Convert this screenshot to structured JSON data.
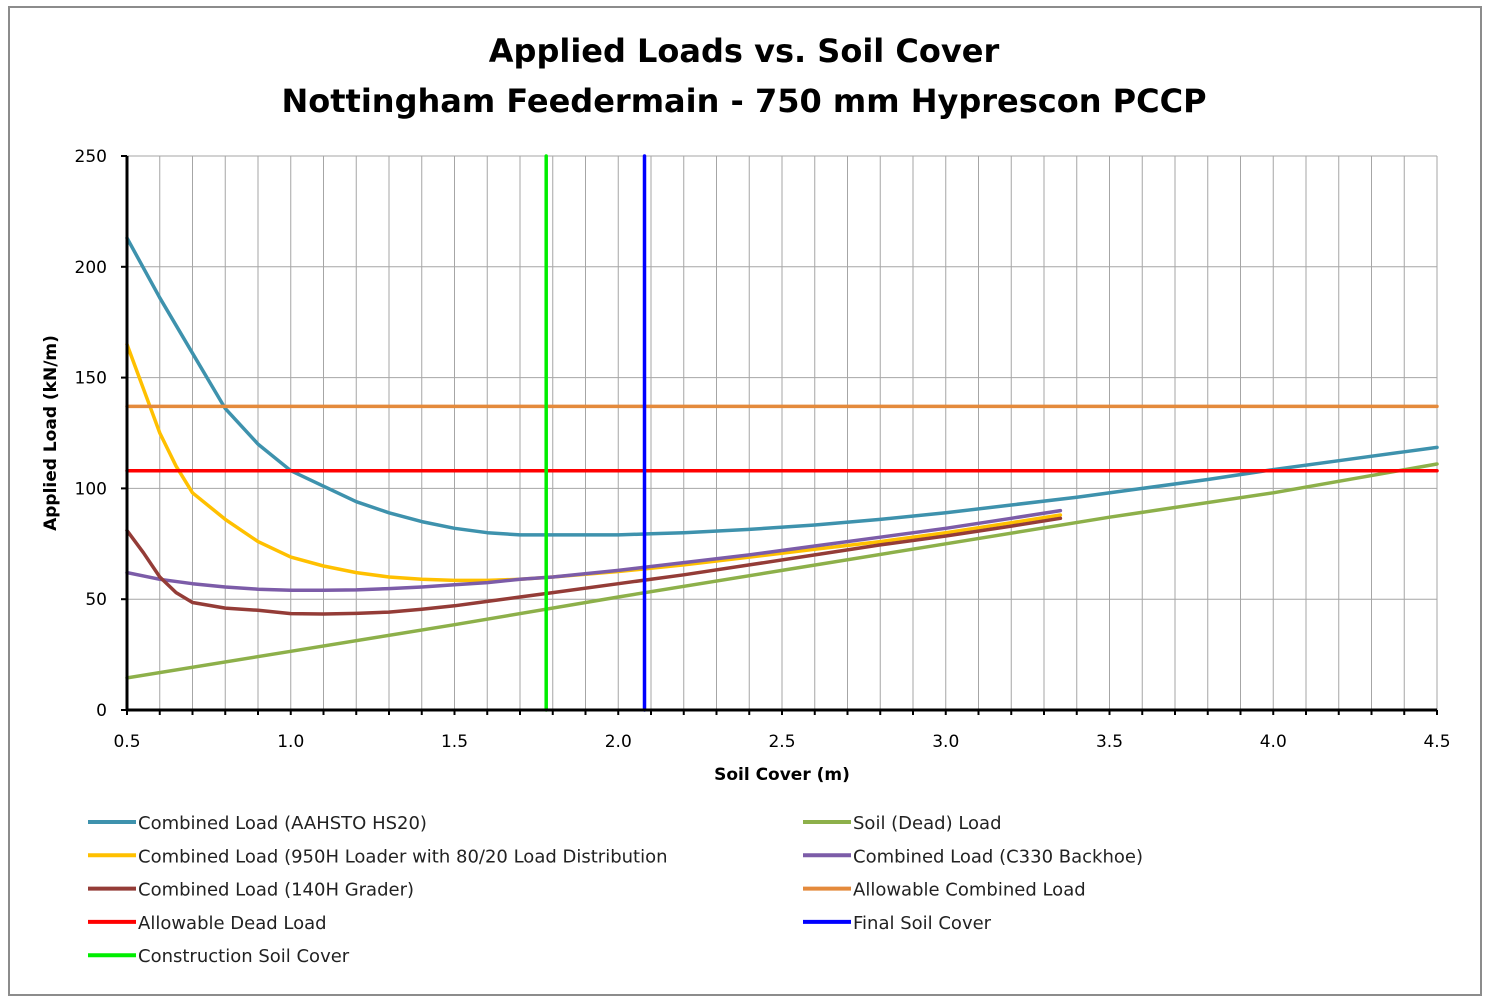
{
  "chart_data": {
    "type": "line",
    "title": "Applied Loads vs. Soil Cover",
    "subtitle": "Nottingham Feedermain - 750 mm Hyprescon PCCP",
    "xlabel": "Soil Cover (m)",
    "ylabel": "Applied Load (kN/m)",
    "xlim": [
      0.5,
      4.5
    ],
    "ylim": [
      0,
      250
    ],
    "x_ticks": [
      "0.5",
      "1.0",
      "1.5",
      "2.0",
      "2.5",
      "3.0",
      "3.5",
      "4.0",
      "4.5"
    ],
    "y_ticks": [
      "0",
      "50",
      "100",
      "150",
      "200",
      "250"
    ],
    "grid": true,
    "legend_position": "bottom",
    "series": [
      {
        "name": "Combined Load (AAHSTO HS20)",
        "color": "#3e92ad",
        "points": [
          [
            0.5,
            213
          ],
          [
            0.6,
            186
          ],
          [
            0.7,
            161
          ],
          [
            0.8,
            136
          ],
          [
            0.9,
            120
          ],
          [
            1.0,
            108
          ],
          [
            1.1,
            101
          ],
          [
            1.2,
            94
          ],
          [
            1.3,
            89
          ],
          [
            1.4,
            85
          ],
          [
            1.5,
            82
          ],
          [
            1.6,
            80
          ],
          [
            1.7,
            79
          ],
          [
            1.8,
            79
          ],
          [
            1.9,
            79
          ],
          [
            2.0,
            79
          ],
          [
            2.1,
            79.5
          ],
          [
            2.2,
            80
          ],
          [
            2.4,
            81.5
          ],
          [
            2.6,
            83.5
          ],
          [
            2.8,
            86
          ],
          [
            3.0,
            89
          ],
          [
            3.2,
            92.5
          ],
          [
            3.4,
            96
          ],
          [
            3.6,
            100
          ],
          [
            3.8,
            104
          ],
          [
            4.0,
            108.5
          ],
          [
            4.2,
            112.5
          ],
          [
            4.4,
            116.5
          ],
          [
            4.5,
            118.5
          ]
        ]
      },
      {
        "name": "Soil (Dead) Load",
        "color": "#8db04a",
        "points": [
          [
            0.5,
            14.5
          ],
          [
            1.0,
            26.5
          ],
          [
            1.5,
            38.5
          ],
          [
            2.0,
            51
          ],
          [
            2.5,
            63
          ],
          [
            3.0,
            75
          ],
          [
            3.5,
            87
          ],
          [
            4.0,
            98
          ],
          [
            4.5,
            111
          ]
        ]
      },
      {
        "name": "Combined Load (950H Loader with 80/20 Load Distribution",
        "color": "#ffc000",
        "points": [
          [
            0.5,
            165
          ],
          [
            0.55,
            145
          ],
          [
            0.6,
            125
          ],
          [
            0.65,
            110
          ],
          [
            0.7,
            98
          ],
          [
            0.8,
            86
          ],
          [
            0.9,
            76
          ],
          [
            1.0,
            69
          ],
          [
            1.1,
            65
          ],
          [
            1.2,
            62
          ],
          [
            1.3,
            60
          ],
          [
            1.4,
            59
          ],
          [
            1.5,
            58.5
          ],
          [
            1.6,
            58.5
          ],
          [
            1.7,
            59
          ],
          [
            1.8,
            60
          ],
          [
            2.0,
            62.5
          ],
          [
            2.2,
            65.5
          ],
          [
            2.4,
            69
          ],
          [
            2.6,
            72.5
          ],
          [
            2.8,
            76
          ],
          [
            3.0,
            80
          ],
          [
            3.2,
            84.5
          ],
          [
            3.35,
            88
          ]
        ]
      },
      {
        "name": "Combined Load (C330 Backhoe)",
        "color": "#7c5ca8",
        "points": [
          [
            0.5,
            62
          ],
          [
            0.6,
            59
          ],
          [
            0.7,
            57
          ],
          [
            0.8,
            55.5
          ],
          [
            0.9,
            54.5
          ],
          [
            1.0,
            54
          ],
          [
            1.1,
            54
          ],
          [
            1.2,
            54.2
          ],
          [
            1.3,
            54.8
          ],
          [
            1.4,
            55.5
          ],
          [
            1.5,
            56.5
          ],
          [
            1.6,
            57.5
          ],
          [
            1.7,
            59
          ],
          [
            1.8,
            60
          ],
          [
            2.0,
            63
          ],
          [
            2.2,
            66.5
          ],
          [
            2.4,
            70
          ],
          [
            2.6,
            74
          ],
          [
            2.8,
            78
          ],
          [
            3.0,
            82
          ],
          [
            3.2,
            86.5
          ],
          [
            3.35,
            90
          ]
        ]
      },
      {
        "name": "Combined Load (140H Grader)",
        "color": "#943c37",
        "points": [
          [
            0.5,
            81
          ],
          [
            0.55,
            71
          ],
          [
            0.6,
            60
          ],
          [
            0.65,
            53
          ],
          [
            0.7,
            48.5
          ],
          [
            0.8,
            46
          ],
          [
            0.9,
            45
          ],
          [
            1.0,
            43.5
          ],
          [
            1.1,
            43.3
          ],
          [
            1.2,
            43.6
          ],
          [
            1.3,
            44.2
          ],
          [
            1.4,
            45.5
          ],
          [
            1.5,
            47
          ],
          [
            1.6,
            49
          ],
          [
            1.7,
            51
          ],
          [
            1.8,
            53
          ],
          [
            2.0,
            57
          ],
          [
            2.2,
            61
          ],
          [
            2.4,
            65.5
          ],
          [
            2.6,
            70
          ],
          [
            2.8,
            74.5
          ],
          [
            3.0,
            78.5
          ],
          [
            3.2,
            83
          ],
          [
            3.35,
            86.5
          ]
        ]
      },
      {
        "name": "Allowable Combined Load",
        "color": "#e48a3c",
        "points": [
          [
            0.5,
            137
          ],
          [
            4.5,
            137
          ]
        ]
      },
      {
        "name": "Allowable Dead Load",
        "color": "#ff0000",
        "points": [
          [
            0.5,
            108
          ],
          [
            4.5,
            108
          ]
        ]
      },
      {
        "name": "Final Soil Cover",
        "color": "#0000ff",
        "points": [
          [
            2.08,
            0
          ],
          [
            2.08,
            250
          ]
        ]
      },
      {
        "name": "Construction Soil Cover",
        "color": "#00ee00",
        "points": [
          [
            1.78,
            0
          ],
          [
            1.78,
            250
          ]
        ]
      }
    ]
  }
}
